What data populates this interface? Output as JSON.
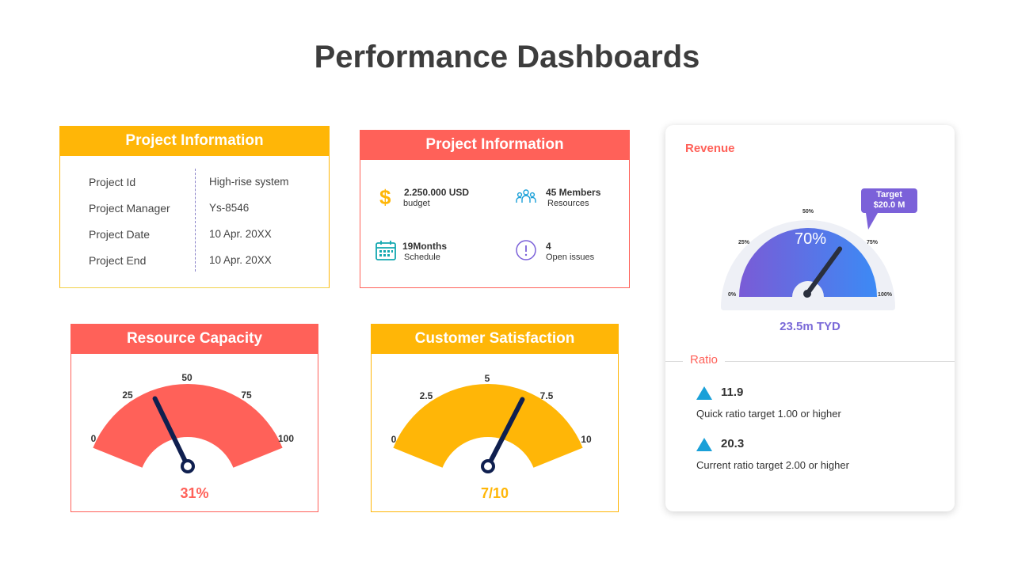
{
  "page": {
    "title": "Performance Dashboards"
  },
  "project_info": {
    "header": "Project Information",
    "rows": [
      {
        "key": "Project Id",
        "value": "High-rise system"
      },
      {
        "key": "Project Manager",
        "value": "Ys-8546"
      },
      {
        "key": "Project Date",
        "value": "10 Apr. 20XX"
      },
      {
        "key": "Project End",
        "value": "10 Apr. 20XX"
      }
    ]
  },
  "project_stats": {
    "header": "Project Information",
    "items": [
      {
        "value": "2.250.000 USD",
        "label": "budget",
        "icon": "dollar-icon"
      },
      {
        "value": "45 Members",
        "label": "Resources",
        "icon": "team-icon"
      },
      {
        "value": "19Months",
        "label": "Schedule",
        "icon": "calendar-icon"
      },
      {
        "value": "4",
        "label": "Open issues",
        "icon": "alert-icon"
      }
    ]
  },
  "resource_capacity": {
    "header": "Resource Capacity",
    "ticks": [
      "0",
      "25",
      "50",
      "75",
      "100"
    ],
    "value_label": "31%",
    "level": 0.31,
    "color": "#FF6159"
  },
  "customer_satisfaction": {
    "header": "Customer Satisfaction",
    "ticks": [
      "0",
      "2.5",
      "5",
      "7.5",
      "10"
    ],
    "value_label": "7/10",
    "level": 0.7,
    "color": "#FFB607"
  },
  "revenue": {
    "title": "Revenue",
    "ticks": [
      "0%",
      "25%",
      "50%",
      "75%",
      "100%"
    ],
    "percent_label": "70%",
    "level": 0.7,
    "target_line1": "Target",
    "target_line2": "$20.0 M",
    "total": "23.5m TYD"
  },
  "ratio": {
    "title": "Ratio",
    "items": [
      {
        "value": "11.9",
        "desc": "Quick ratio target 1.00 or higher"
      },
      {
        "value": "20.3",
        "desc": "Current ratio target 2.00 or higher"
      }
    ]
  },
  "colors": {
    "accent_yellow": "#FFB607",
    "accent_red": "#FF6159",
    "accent_purple": "#7b61d9",
    "accent_blue": "#1aa0d8",
    "needle": "#0f1f4f"
  }
}
